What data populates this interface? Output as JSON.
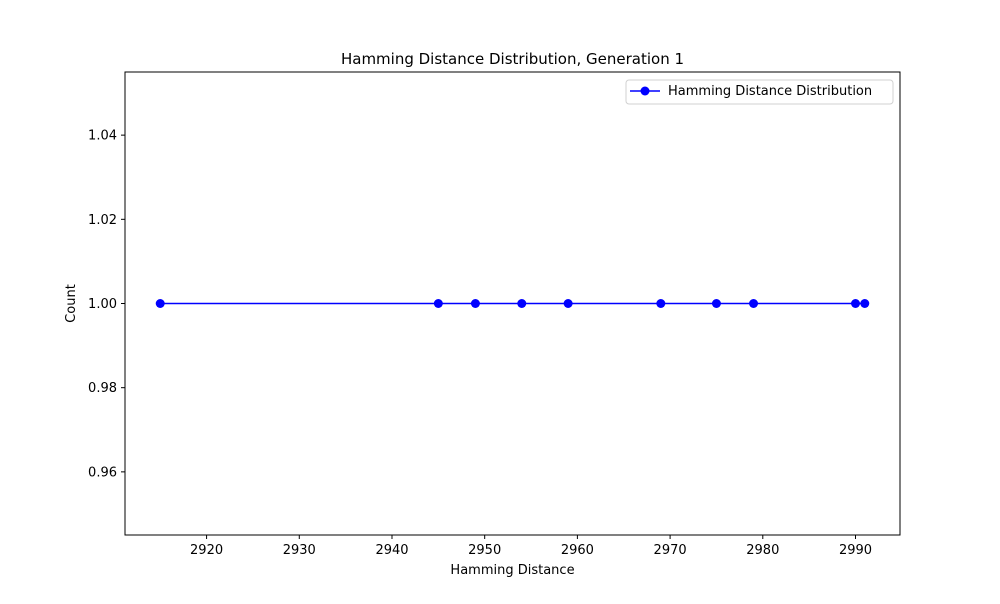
{
  "chart_data": {
    "type": "line",
    "title": "Hamming Distance Distribution, Generation 1",
    "xlabel": "Hamming Distance",
    "ylabel": "Count",
    "xlim": [
      2911.2,
      2994.8
    ],
    "ylim": [
      0.945,
      1.055
    ],
    "xticks": [
      2920,
      2930,
      2940,
      2950,
      2960,
      2970,
      2980,
      2990
    ],
    "yticks": [
      0.96,
      0.98,
      1.0,
      1.02,
      1.04
    ],
    "ytick_labels": [
      "0.96",
      "0.98",
      "1.00",
      "1.02",
      "1.04"
    ],
    "grid": false,
    "legend_position": "top-right",
    "series": [
      {
        "name": "Hamming Distance Distribution",
        "color": "#0000ff",
        "marker": "circle",
        "x": [
          2915,
          2945,
          2949,
          2954,
          2959,
          2969,
          2975,
          2979,
          2990,
          2991
        ],
        "y": [
          1,
          1,
          1,
          1,
          1,
          1,
          1,
          1,
          1,
          1
        ]
      }
    ]
  }
}
